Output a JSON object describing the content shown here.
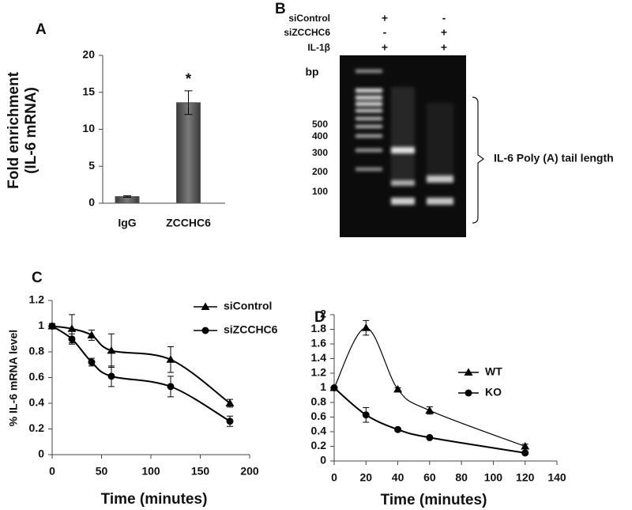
{
  "chart_data": [
    {
      "type": "bar",
      "panel": "A",
      "categories": [
        "IgG",
        "ZCCHC6"
      ],
      "values": [
        0.9,
        13.6
      ],
      "errors": [
        0.1,
        1.6
      ],
      "color": "#555555",
      "ylabel": [
        "Fold enrichment",
        "(IL-6 mRNA)"
      ],
      "ylim": [
        0,
        20
      ],
      "yticks": [
        0,
        5,
        10,
        15,
        20
      ],
      "annotation": "*"
    },
    {
      "type": "line",
      "panel": "C",
      "x": [
        0,
        20,
        40,
        60,
        120,
        180
      ],
      "xlabel": "Time (minutes)",
      "ylabel": "% IL-6 mRNA level",
      "xlim": [
        0,
        200
      ],
      "xticks": [
        0,
        50,
        100,
        150,
        200
      ],
      "ylim": [
        0,
        1.2
      ],
      "yticks": [
        0,
        0.2,
        0.4,
        0.6,
        0.8,
        1,
        1.2
      ],
      "series": [
        {
          "name": "siControl",
          "color": "#000000",
          "marker": "triangle",
          "values": [
            1,
            0.98,
            0.93,
            0.81,
            0.74,
            0.4
          ],
          "errors": [
            0.02,
            0.11,
            0.04,
            0.13,
            0.1,
            0.03
          ]
        },
        {
          "name": "siZCCHC6",
          "color": "#000000",
          "marker": "circle",
          "values": [
            1,
            0.9,
            0.72,
            0.61,
            0.53,
            0.26
          ],
          "errors": [
            0.02,
            0.04,
            0.03,
            0.08,
            0.08,
            0.04
          ]
        }
      ]
    },
    {
      "type": "line",
      "panel": "D",
      "x": [
        0,
        20,
        40,
        60,
        120
      ],
      "xlabel": "Time (minutes)",
      "xlim": [
        0,
        140
      ],
      "xticks": [
        0,
        20,
        40,
        60,
        80,
        100,
        120,
        140
      ],
      "ylim": [
        0,
        2
      ],
      "yticks": [
        0,
        0.2,
        0.4,
        0.6,
        0.8,
        1,
        1.2,
        1.4,
        1.6,
        1.8,
        2
      ],
      "series": [
        {
          "name": "WT",
          "color": "#000000",
          "marker": "triangle",
          "values": [
            1,
            1.82,
            0.98,
            0.69,
            0.2
          ],
          "errors": [
            0.02,
            0.1,
            0.02,
            0.05,
            0.03
          ]
        },
        {
          "name": "KO",
          "color": "#000000",
          "marker": "circle",
          "values": [
            1,
            0.63,
            0.43,
            0.32,
            0.11
          ],
          "errors": [
            0.02,
            0.1,
            0.02,
            0.01,
            0.02
          ]
        }
      ]
    }
  ],
  "gel": {
    "panel": "B",
    "rows": [
      {
        "label": "siControl",
        "lanes": [
          "+",
          "-"
        ]
      },
      {
        "label": "siZCCHC6",
        "lanes": [
          "-",
          "+"
        ]
      },
      {
        "label": "IL-1β",
        "lanes": [
          "+",
          "+"
        ]
      }
    ],
    "unit": "bp",
    "markers": [
      "500",
      "400",
      "300",
      "200",
      "100"
    ],
    "annotation": "IL-6 Poly (A) tail length"
  }
}
